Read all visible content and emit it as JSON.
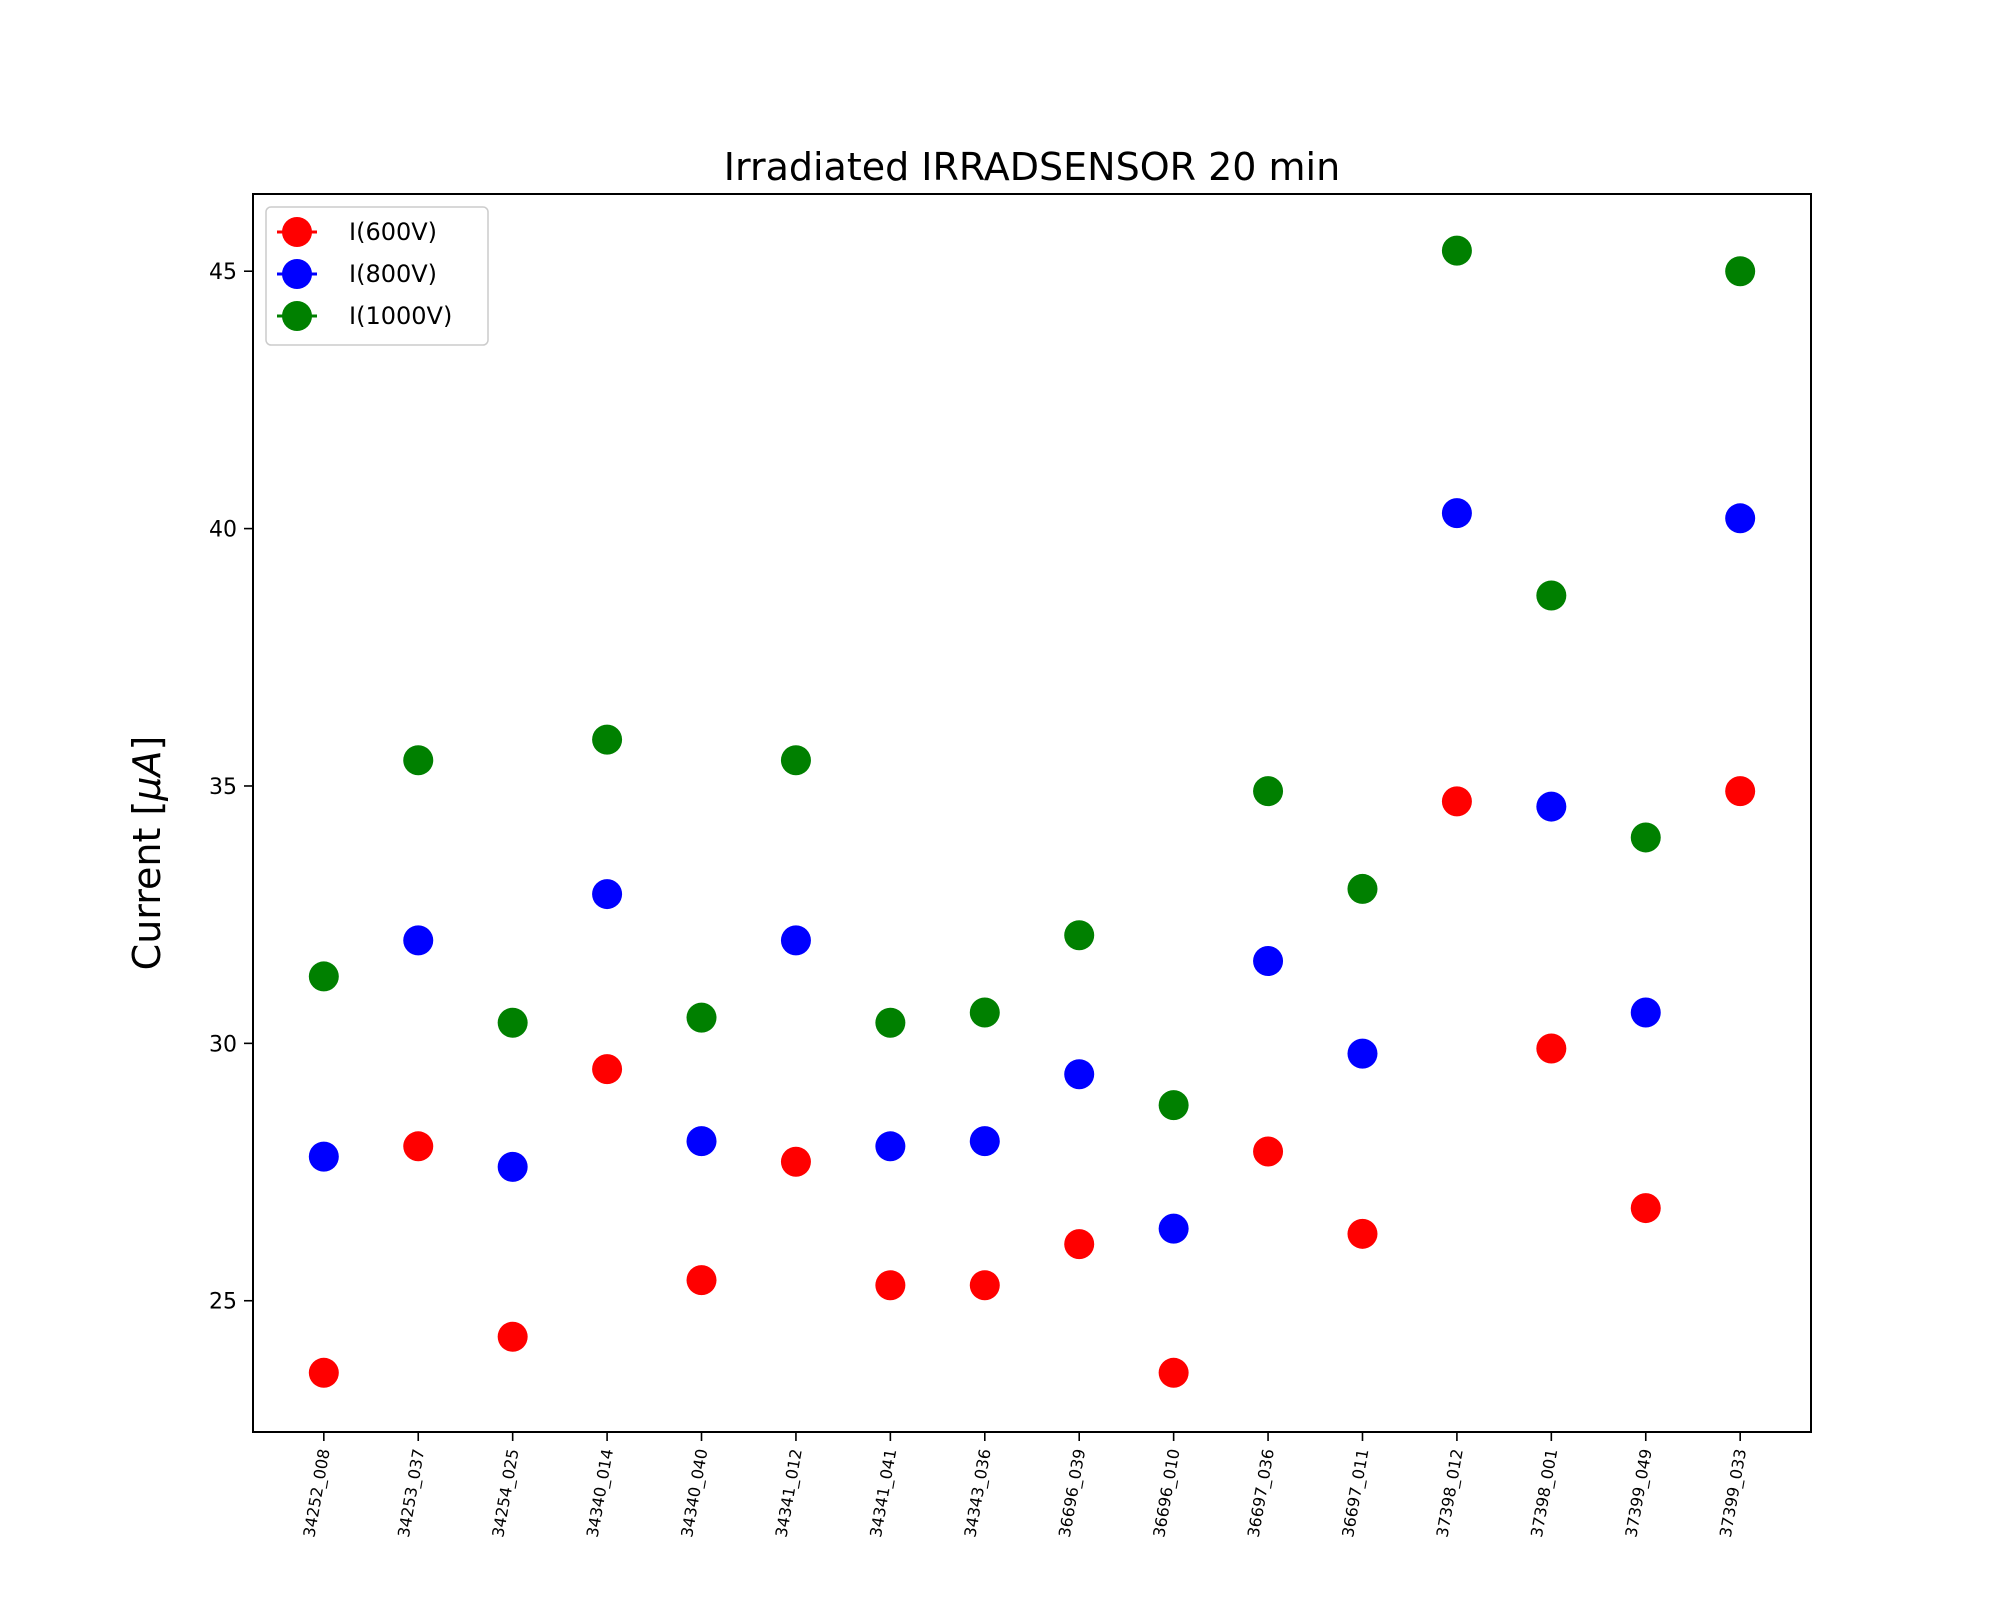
{
  "chart_data": {
    "type": "scatter",
    "title": "Irradiated IRRADSENSOR 20 min",
    "xlabel": "",
    "ylabel": "Current [μA]",
    "ylabel_prefix": "Current [",
    "ylabel_unit": "μA",
    "ylabel_suffix": "]",
    "categories": [
      "34252_008",
      "34253_037",
      "34254_025",
      "34340_014",
      "34340_040",
      "34341_012",
      "34341_041",
      "34343_036",
      "36696_039",
      "36696_010",
      "36697_036",
      "36697_011",
      "37398_012",
      "37398_001",
      "37399_049",
      "37399_033"
    ],
    "ylim": [
      22.45,
      46.5
    ],
    "yticks": [
      25,
      30,
      35,
      40,
      45
    ],
    "grid": false,
    "legend_position": "upper left",
    "series": [
      {
        "name": "I(600V)",
        "color": "#ff0000",
        "values": [
          23.6,
          28.0,
          24.3,
          29.5,
          25.4,
          27.7,
          25.3,
          25.3,
          26.1,
          23.6,
          27.9,
          26.3,
          34.7,
          29.9,
          26.8,
          34.9
        ]
      },
      {
        "name": "I(800V)",
        "color": "#0000ff",
        "values": [
          27.8,
          32.0,
          27.6,
          32.9,
          28.1,
          32.0,
          28.0,
          28.1,
          29.4,
          26.4,
          31.6,
          29.8,
          40.3,
          34.6,
          30.6,
          40.2
        ]
      },
      {
        "name": "I(1000V)",
        "color": "#008000",
        "values": [
          31.3,
          35.5,
          30.4,
          35.9,
          30.5,
          35.5,
          30.4,
          30.6,
          32.1,
          28.8,
          34.9,
          33.0,
          45.4,
          38.7,
          34.0,
          45.0
        ]
      }
    ]
  }
}
